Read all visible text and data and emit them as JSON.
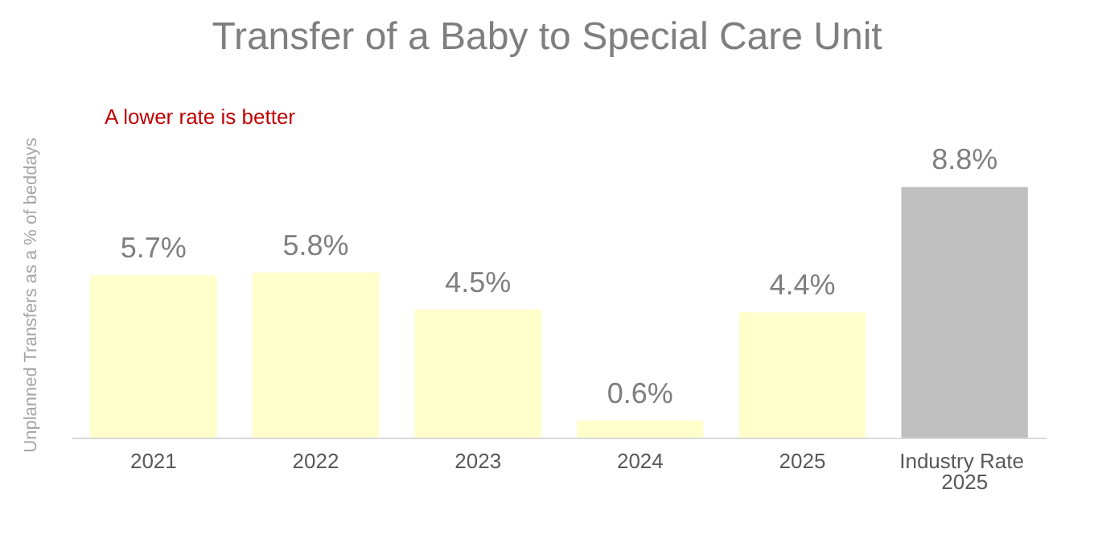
{
  "chart_data": {
    "type": "bar",
    "title": "Transfer of a Baby to Special Care Unit",
    "ylabel": "Unplanned Transfers as a % of beddays",
    "annotations": [
      "A lower rate is better"
    ],
    "categories": [
      "2021",
      "2022",
      "2023",
      "2024",
      "2025",
      "Industry Rate 2025"
    ],
    "values": [
      5.7,
      5.8,
      4.5,
      0.6,
      4.4,
      8.8
    ],
    "colors": [
      "#ffffcc",
      "#ffffcc",
      "#ffffcc",
      "#ffffcc",
      "#ffffcc",
      "#bfbfbf"
    ],
    "value_labels": [
      "5.7%",
      "5.8%",
      "4.5%",
      "0.6%",
      "4.4%",
      "8.8%"
    ],
    "grid": false
  }
}
